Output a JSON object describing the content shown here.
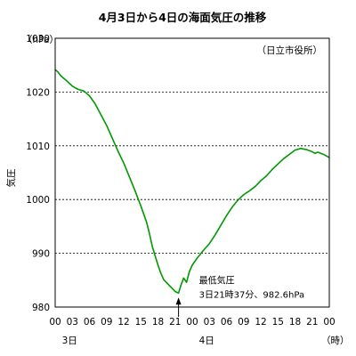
{
  "chart_data": {
    "type": "line",
    "title": "4月3日から4日の海面気圧の推移",
    "ylabel": "気圧",
    "yunit": "（hPa）",
    "xunit": "（時）",
    "source_note": "（日立市役所）",
    "ylim": [
      980,
      1030
    ],
    "yticks": [
      980,
      990,
      1000,
      1010,
      1020,
      1030
    ],
    "grid": "horizontal-dashed",
    "xticks": [
      "00",
      "03",
      "06",
      "09",
      "12",
      "15",
      "18",
      "21",
      "00",
      "03",
      "06",
      "09",
      "12",
      "15",
      "18",
      "21",
      "00"
    ],
    "day_labels": [
      {
        "label": "3日",
        "hour": 3
      },
      {
        "label": "4日",
        "hour": 27
      }
    ],
    "annotation": {
      "title": "最低気圧",
      "detail": "3日21時37分、982.6hPa",
      "hour": 21.6,
      "value": 982.6
    },
    "series": [
      {
        "color": "#009900",
        "x": [
          0,
          0.5,
          1,
          2,
          3,
          4,
          5,
          6,
          7,
          8,
          9,
          10,
          11,
          12,
          13,
          14,
          15,
          16,
          16.5,
          17,
          18,
          18.5,
          19,
          20,
          21,
          21.6,
          22,
          22.5,
          23,
          23.5,
          24,
          25,
          26,
          27,
          28,
          29,
          30,
          31,
          32,
          33,
          34,
          35,
          36,
          37,
          38,
          39,
          40,
          41,
          42,
          43,
          44,
          45,
          45.5,
          46,
          47,
          48
        ],
        "values": [
          1024.2,
          1023.7,
          1023.0,
          1022.1,
          1021.1,
          1020.5,
          1020.2,
          1019.3,
          1017.8,
          1015.8,
          1013.8,
          1011.4,
          1009.0,
          1006.8,
          1004.2,
          1001.6,
          998.8,
          995.8,
          993.7,
          991.3,
          987.8,
          986.3,
          985.1,
          984.0,
          982.9,
          982.6,
          984.0,
          985.4,
          984.6,
          986.6,
          987.8,
          989.3,
          990.6,
          991.8,
          993.4,
          995.2,
          997.0,
          998.6,
          999.9,
          1000.9,
          1001.6,
          1002.4,
          1003.5,
          1004.4,
          1005.6,
          1006.6,
          1007.6,
          1008.4,
          1009.2,
          1009.5,
          1009.3,
          1008.9,
          1008.6,
          1008.8,
          1008.4,
          1007.8
        ]
      }
    ]
  }
}
